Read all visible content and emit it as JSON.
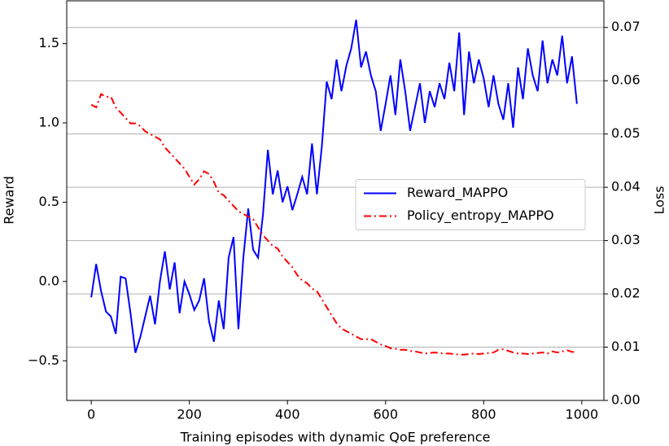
{
  "chart_data": {
    "type": "line",
    "xlabel": "Training episodes with dynamic QoE preference",
    "ylabel": "Reward",
    "y2label": "Loss",
    "x": [
      0,
      10,
      20,
      30,
      40,
      50,
      60,
      70,
      80,
      90,
      100,
      110,
      120,
      130,
      140,
      150,
      160,
      170,
      180,
      190,
      200,
      210,
      220,
      230,
      240,
      250,
      260,
      270,
      280,
      290,
      300,
      310,
      320,
      330,
      340,
      350,
      360,
      370,
      380,
      390,
      400,
      410,
      420,
      430,
      440,
      450,
      460,
      470,
      480,
      490,
      500,
      510,
      520,
      530,
      540,
      550,
      560,
      570,
      580,
      590,
      600,
      610,
      620,
      630,
      640,
      650,
      660,
      670,
      680,
      690,
      700,
      710,
      720,
      730,
      740,
      750,
      760,
      770,
      780,
      790,
      800,
      810,
      820,
      830,
      840,
      850,
      860,
      870,
      880,
      890,
      900,
      910,
      920,
      930,
      940,
      950,
      960,
      970,
      980,
      990
    ],
    "series": [
      {
        "name": "Reward_MAPPO",
        "color": "#0000ff",
        "linestyle": "solid",
        "axis": "y",
        "values": [
          -0.1,
          0.11,
          -0.06,
          -0.19,
          -0.22,
          -0.33,
          0.03,
          0.02,
          -0.2,
          -0.45,
          -0.35,
          -0.22,
          -0.09,
          -0.27,
          0.0,
          0.19,
          -0.05,
          0.12,
          -0.2,
          0.0,
          -0.08,
          -0.18,
          -0.12,
          0.02,
          -0.25,
          -0.38,
          -0.12,
          -0.3,
          0.15,
          0.28,
          -0.3,
          0.15,
          0.46,
          0.2,
          0.15,
          0.42,
          0.83,
          0.55,
          0.7,
          0.5,
          0.6,
          0.45,
          0.55,
          0.66,
          0.55,
          0.87,
          0.55,
          0.85,
          1.26,
          1.15,
          1.4,
          1.2,
          1.36,
          1.47,
          1.65,
          1.35,
          1.45,
          1.3,
          1.2,
          0.95,
          1.12,
          1.3,
          1.05,
          1.4,
          1.2,
          0.95,
          1.1,
          1.25,
          1.0,
          1.2,
          1.1,
          1.25,
          1.15,
          1.38,
          1.2,
          1.57,
          1.05,
          1.45,
          1.25,
          1.4,
          1.28,
          1.1,
          1.3,
          1.12,
          1.02,
          1.25,
          0.97,
          1.35,
          1.15,
          1.47,
          1.3,
          1.2,
          1.52,
          1.25,
          1.4,
          1.3,
          1.55,
          1.25,
          1.42,
          1.12
        ]
      },
      {
        "name": "Policy_entropy_MAPPO",
        "color": "#ff0000",
        "linestyle": "dashdot",
        "axis": "y2",
        "values": [
          0.0555,
          0.055,
          0.0575,
          0.057,
          0.057,
          0.055,
          0.054,
          0.053,
          0.052,
          0.052,
          0.0515,
          0.0505,
          0.05,
          0.0495,
          0.049,
          0.0475,
          0.0465,
          0.0455,
          0.0445,
          0.0435,
          0.042,
          0.0405,
          0.0415,
          0.043,
          0.0425,
          0.041,
          0.039,
          0.0385,
          0.0375,
          0.0365,
          0.0355,
          0.035,
          0.0345,
          0.034,
          0.0325,
          0.031,
          0.03,
          0.029,
          0.0285,
          0.027,
          0.026,
          0.025,
          0.0235,
          0.0225,
          0.022,
          0.021,
          0.0205,
          0.019,
          0.0175,
          0.016,
          0.0145,
          0.0135,
          0.013,
          0.0125,
          0.012,
          0.0115,
          0.0115,
          0.0115,
          0.011,
          0.0105,
          0.0102,
          0.0098,
          0.0097,
          0.0095,
          0.0095,
          0.0093,
          0.0092,
          0.009,
          0.0088,
          0.0089,
          0.009,
          0.0089,
          0.0088,
          0.0088,
          0.0087,
          0.0086,
          0.0086,
          0.0087,
          0.0088,
          0.0087,
          0.0088,
          0.0089,
          0.009,
          0.0095,
          0.0096,
          0.0093,
          0.009,
          0.0088,
          0.0088,
          0.0087,
          0.0088,
          0.0089,
          0.009,
          0.0088,
          0.0092,
          0.009,
          0.0092,
          0.0094,
          0.0091,
          0.0091
        ]
      }
    ],
    "xlim": [
      -50,
      1045
    ],
    "xticks": [
      0,
      200,
      400,
      600,
      800,
      1000
    ],
    "ylim": [
      -0.75,
      1.77
    ],
    "yticks": [
      {
        "value": -0.5,
        "label": "−0.5"
      },
      {
        "value": 0,
        "label": "0.0"
      },
      0.5,
      {
        "value": 1,
        "label": "1.0"
      },
      1.5
    ],
    "y2lim": [
      0,
      0.075
    ],
    "y2ticks": [
      {
        "value": 0,
        "label": "0.00"
      },
      0.01,
      0.02,
      0.03,
      0.04,
      0.05,
      0.06,
      0.07
    ],
    "y2grid": true,
    "legend": "center right"
  }
}
